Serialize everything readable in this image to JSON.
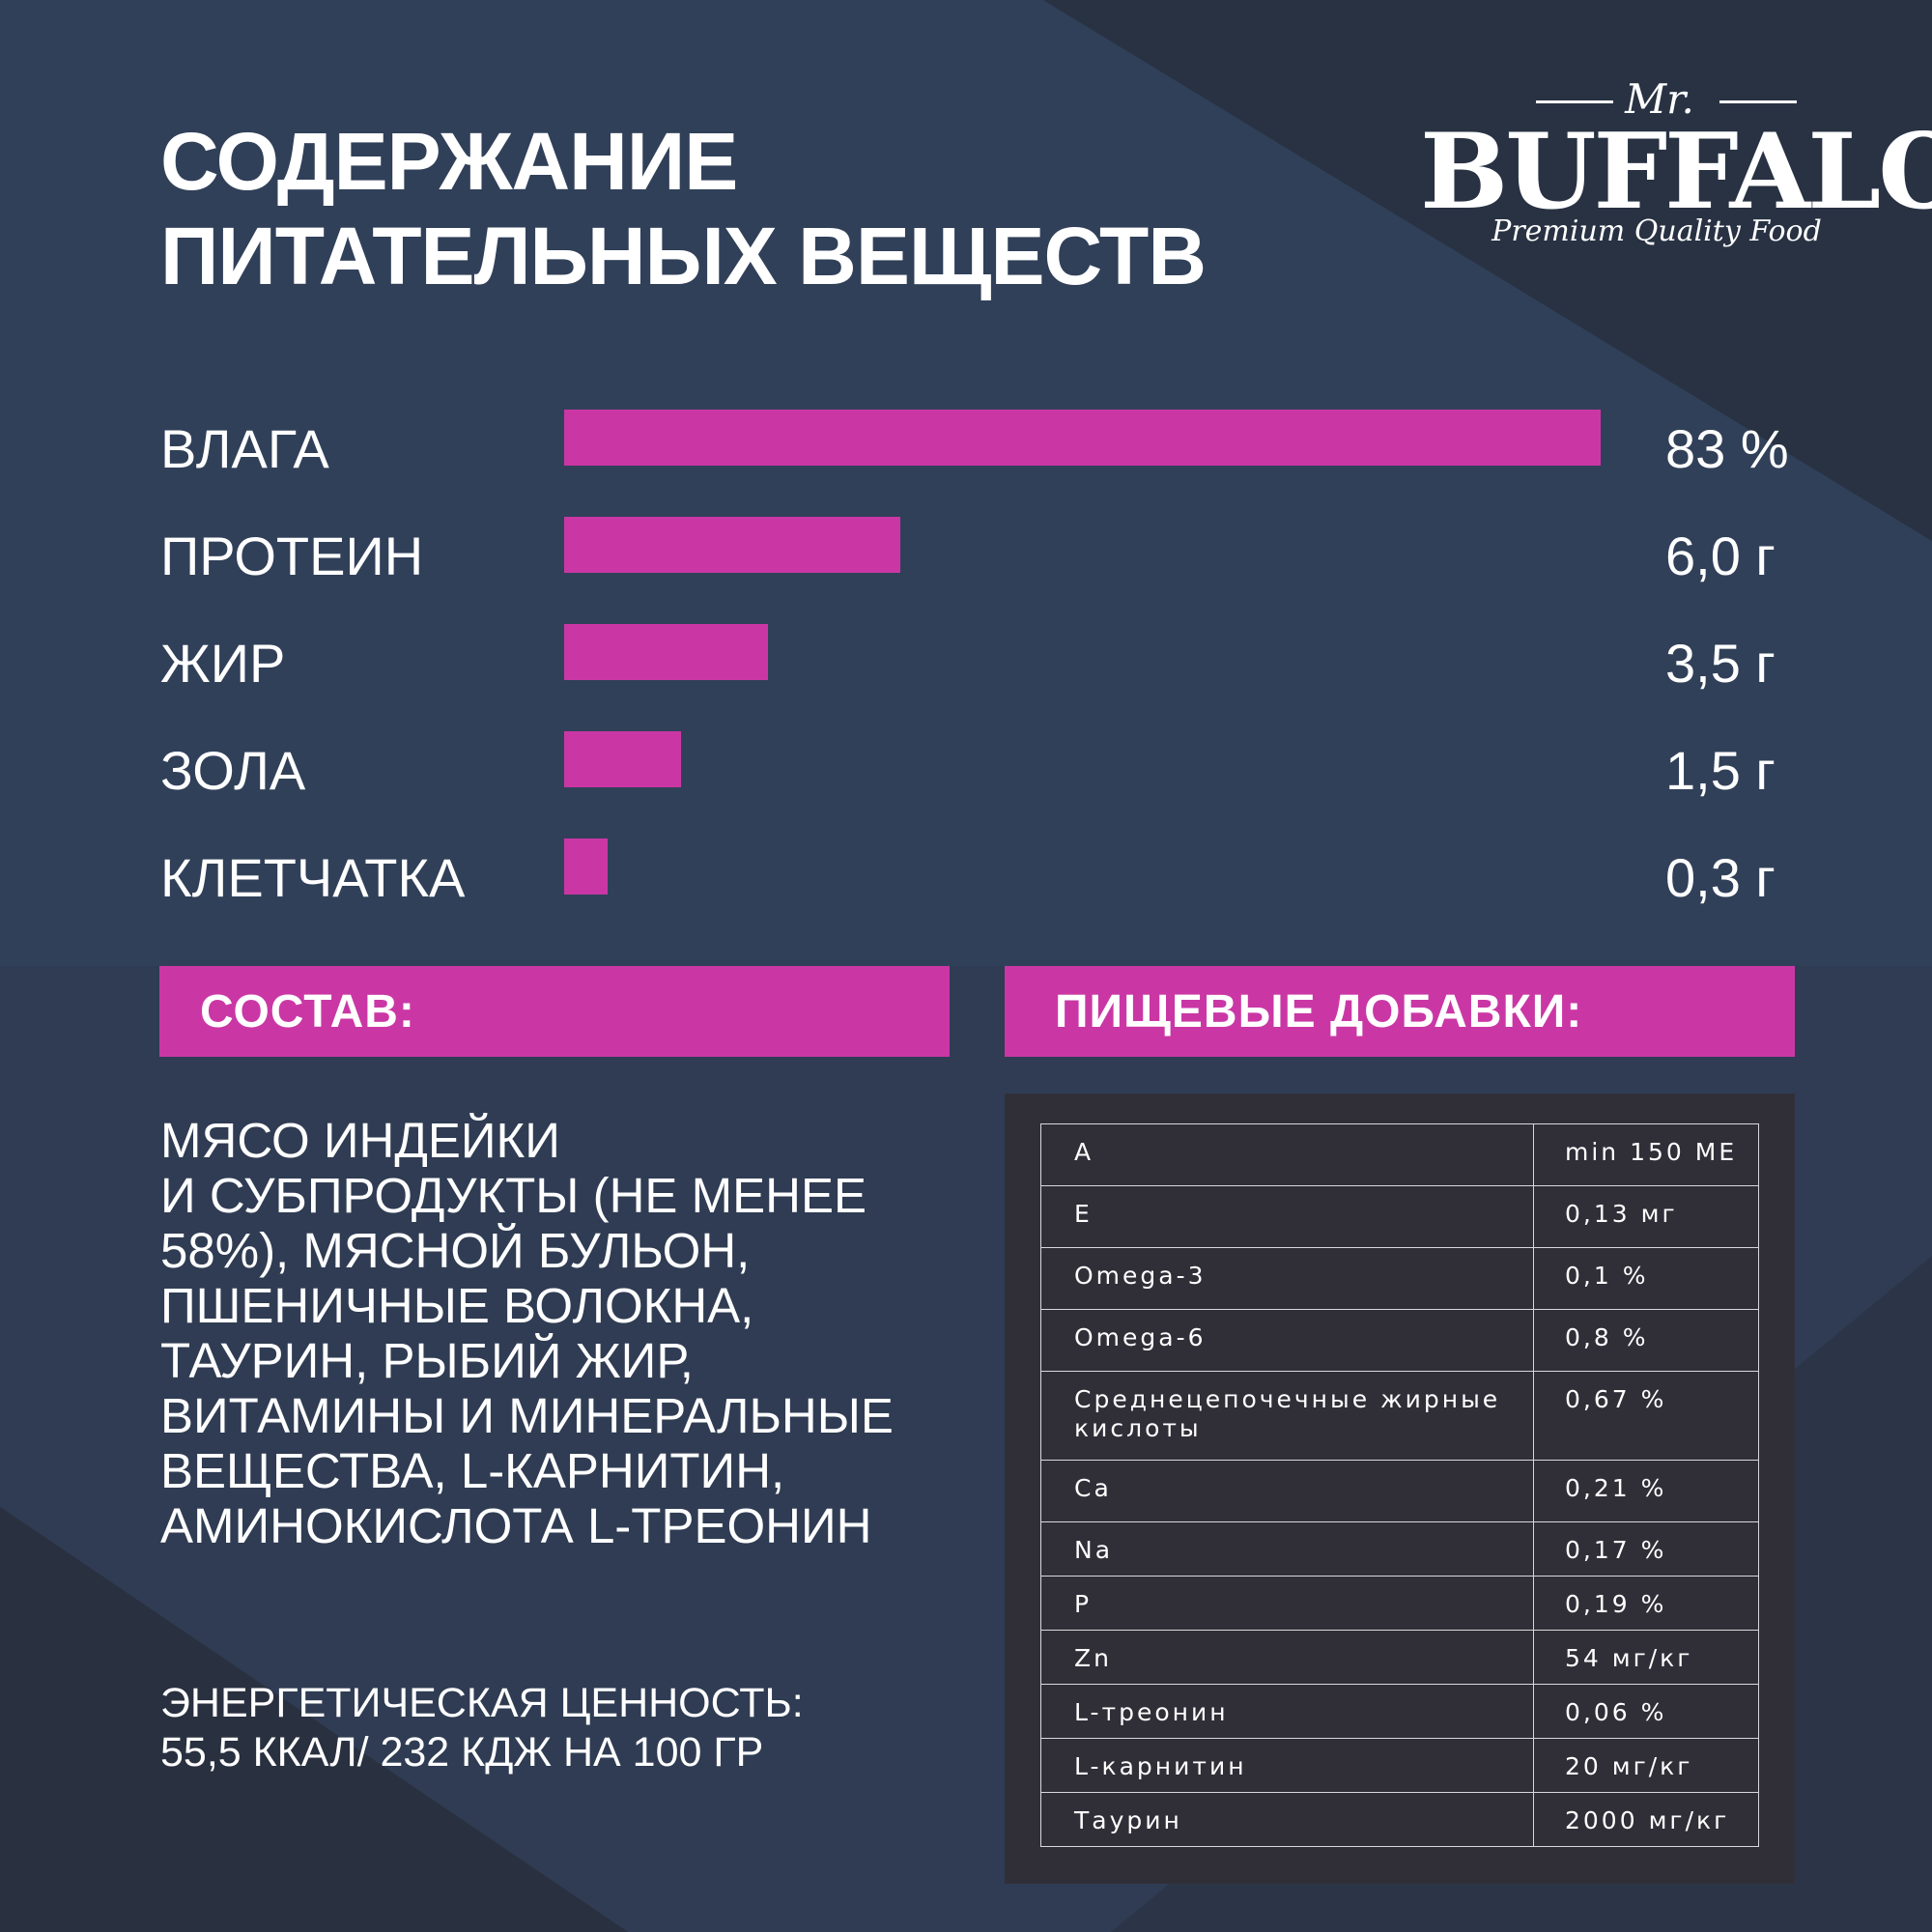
{
  "header": {
    "title_line1": "СОДЕРЖАНИЕ",
    "title_line2": "ПИТАТЕЛЬНЫХ ВЕЩЕСТВ"
  },
  "logo": {
    "mr": "Mr.",
    "brand": "BUFFALO",
    "tagline": "Premium Quality Food"
  },
  "colors": {
    "accent": "#ca37a5",
    "background": "#2b3547",
    "panel": "#302f38"
  },
  "chart_data": {
    "type": "bar",
    "orientation": "horizontal",
    "categories": [
      "ВЛАГА",
      "ПРОТЕИН",
      "ЖИР",
      "ЗОЛА",
      "КЛЕТЧАТКА"
    ],
    "values": [
      83,
      6.0,
      3.5,
      1.5,
      0.3
    ],
    "value_labels": [
      "83 %",
      "6,0 г",
      "3,5 г",
      "1,5 г",
      "0,3 г"
    ],
    "bar_fraction": [
      1.0,
      0.324,
      0.197,
      0.113,
      0.042
    ],
    "title": "",
    "xlabel": "",
    "ylabel": "",
    "grid": false
  },
  "composition": {
    "heading": "СОСТАВ:",
    "lines": [
      "МЯСО ИНДЕЙКИ",
      "И СУБПРОДУКТЫ (НЕ МЕНЕЕ",
      "58%), МЯСНОЙ БУЛЬОН,",
      "ПШЕНИЧНЫЕ ВОЛОКНА,",
      "ТАУРИН, РЫБИЙ ЖИР,",
      "ВИТАМИНЫ И МИНЕРАЛЬНЫЕ",
      "ВЕЩЕСТВА, L-КАРНИТИН,",
      "АМИНОКИСЛОТА L-ТРЕОНИН"
    ],
    "energy_line1": "ЭНЕРГЕТИЧЕСКАЯ ЦЕННОСТЬ:",
    "energy_line2": "55,5 ККАЛ/ 232 КДЖ НА 100 ГР"
  },
  "additives": {
    "heading": "ПИЩЕВЫЕ ДОБАВКИ:",
    "rows": [
      {
        "name": "A",
        "value": "min 150 МЕ"
      },
      {
        "name": "E",
        "value": "0,13 мг"
      },
      {
        "name": "Omega-3",
        "value": "0,1 %"
      },
      {
        "name": "Omega-6",
        "value": "0,8 %"
      },
      {
        "name": "Среднецепочечные жирные кислоты",
        "value": "0,67 %"
      },
      {
        "name": "Ca",
        "value": "0,21 %"
      },
      {
        "name": "Na",
        "value": "0,17 %"
      },
      {
        "name": "P",
        "value": "0,19 %"
      },
      {
        "name": "Zn",
        "value": "54 мг/кг"
      },
      {
        "name": "L-треонин",
        "value": "0,06 %"
      },
      {
        "name": "L-карнитин",
        "value": "20 мг/кг"
      },
      {
        "name": "Таурин",
        "value": "2000 мг/кг"
      }
    ]
  }
}
